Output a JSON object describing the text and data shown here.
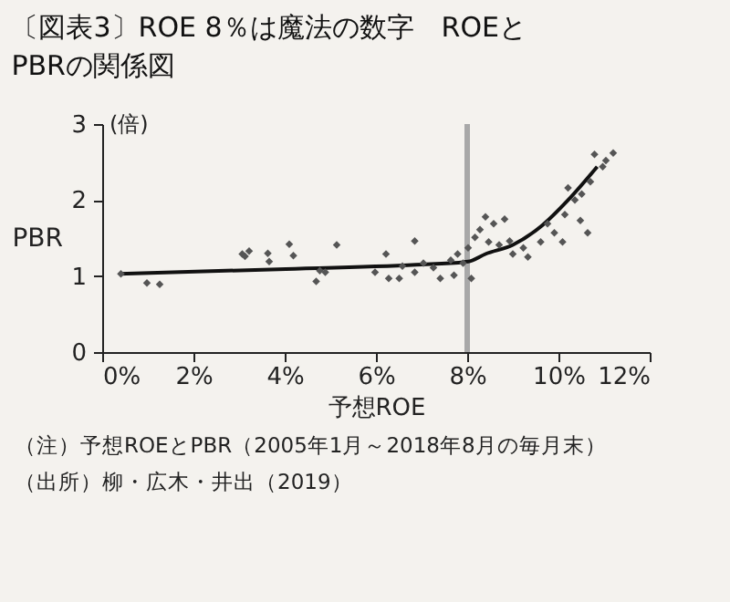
{
  "chart_data": {
    "type": "scatter",
    "title": "〔図表3〕ROE 8％は魔法の数字　ROEと\nPBRの関係図",
    "xlabel": "予想ROE",
    "ylabel": "PBR",
    "series": [
      {
        "color": "#555555",
        "marker": "diamond",
        "x": [
          0.41,
          0.98,
          1.26,
          3.07,
          3.13,
          3.22,
          3.63,
          3.66,
          4.1,
          4.19,
          4.69,
          4.77,
          4.89,
          5.14,
          5.98,
          6.22,
          6.28,
          6.51,
          6.58,
          6.85,
          6.85,
          7.04,
          7.26,
          7.41,
          7.64,
          7.71,
          7.79,
          7.91,
          8.02,
          8.09,
          8.17,
          8.28,
          8.4,
          8.47,
          8.58,
          8.7,
          8.82,
          8.93,
          9.0,
          9.23,
          9.33,
          9.61,
          9.76,
          9.91,
          10.09,
          10.14,
          10.21,
          10.36,
          10.48,
          10.51,
          10.64,
          10.7,
          10.79,
          10.97,
          11.04,
          11.2
        ],
        "values": [
          1.03,
          0.91,
          0.89,
          1.29,
          1.26,
          1.33,
          1.3,
          1.19,
          1.42,
          1.27,
          0.93,
          1.07,
          1.05,
          1.41,
          1.05,
          1.29,
          0.97,
          0.97,
          1.13,
          1.05,
          1.46,
          1.17,
          1.11,
          0.97,
          1.21,
          1.01,
          1.29,
          1.17,
          1.37,
          0.97,
          1.51,
          1.61,
          1.78,
          1.45,
          1.69,
          1.41,
          1.75,
          1.46,
          1.29,
          1.37,
          1.25,
          1.45,
          1.69,
          1.57,
          1.45,
          1.81,
          2.16,
          2.0,
          1.73,
          2.08,
          1.57,
          2.24,
          2.6,
          2.44,
          2.52,
          2.62
        ]
      },
      {
        "type": "line",
        "color": "#111111",
        "marker": "none",
        "x": [
          0.38,
          3.86,
          6.88,
          8.02,
          8.4,
          9.0,
          9.61,
          10.21,
          10.85
        ],
        "values": [
          1.03,
          1.09,
          1.15,
          1.19,
          1.29,
          1.41,
          1.65,
          2.0,
          2.44
        ]
      }
    ],
    "xlim": [
      0,
      12
    ],
    "xticks": [
      {
        "value": 0,
        "label": "0%"
      },
      {
        "value": 2,
        "label": "2%"
      },
      {
        "value": 4,
        "label": "4%"
      },
      {
        "value": 6,
        "label": "6%"
      },
      {
        "value": 8,
        "label": "8%"
      },
      {
        "value": 10,
        "label": "10%"
      },
      {
        "value": 12,
        "label": "12%"
      }
    ],
    "ylim": [
      0,
      3
    ],
    "yticks": [
      0,
      1,
      2,
      3
    ],
    "ref_lines": [
      {
        "axis": "x",
        "value": 8,
        "color": "#a8a8a8"
      }
    ],
    "grid": false,
    "annotations": [
      "(倍)",
      "（注）予想ROEとPBR（2005年1月～2018年8月の毎月末）",
      "（出所）柳・広木・井出（2019）"
    ]
  }
}
